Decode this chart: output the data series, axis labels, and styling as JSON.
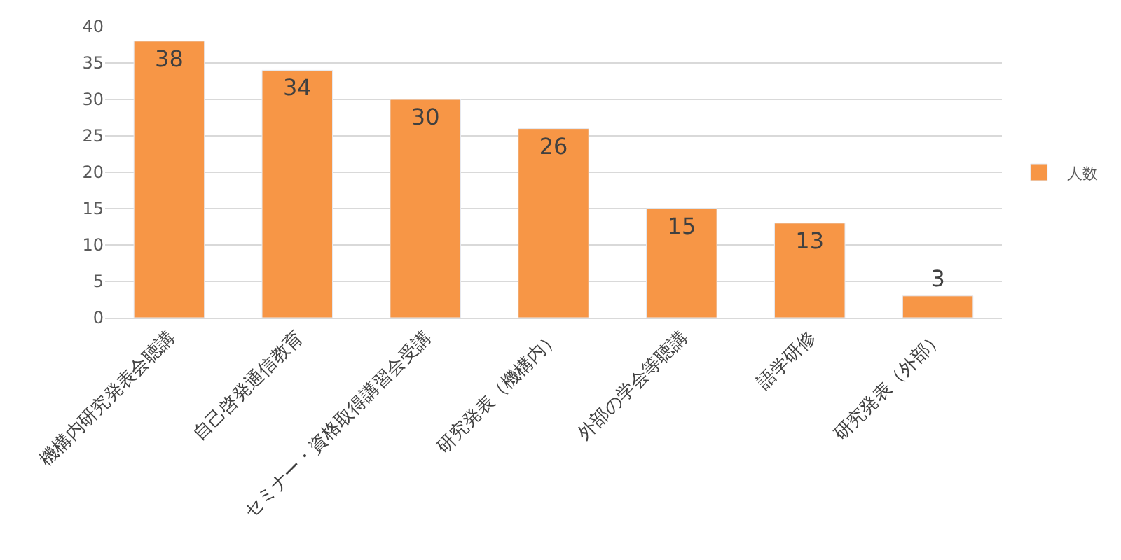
{
  "chart_data": {
    "type": "bar",
    "categories": [
      "機構内研究発表会聴講",
      "自己啓発通信教育",
      "セミナー・資格取得講習会受講",
      "研究発表（機構内）",
      "外部の学会等聴講",
      "語学研修",
      "研究発表（外部）"
    ],
    "series": [
      {
        "name": "人数",
        "color": "#f79646",
        "values": [
          38,
          34,
          30,
          26,
          15,
          13,
          3
        ]
      }
    ],
    "ylim": [
      0,
      40
    ],
    "yticks": [
      0,
      5,
      10,
      15,
      20,
      25,
      30,
      35,
      40
    ],
    "grid": "y",
    "legend": "right",
    "data_labels": true
  }
}
